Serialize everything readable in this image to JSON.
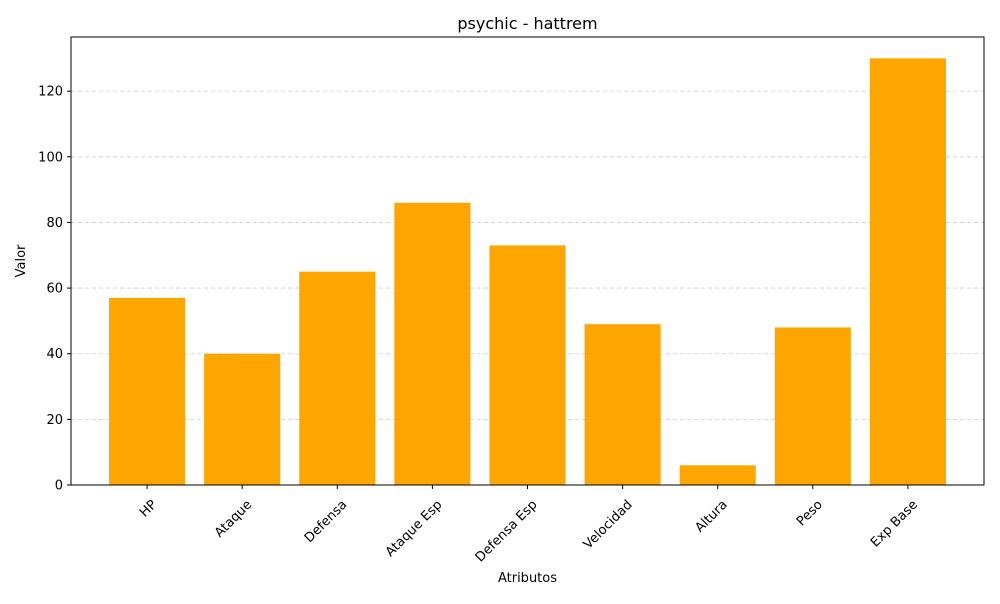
{
  "chart_data": {
    "type": "bar",
    "title": "psychic - hattrem",
    "xlabel": "Atributos",
    "ylabel": "Valor",
    "categories": [
      "HP",
      "Ataque",
      "Defensa",
      "Ataque Esp",
      "Defensa Esp",
      "Velocidad",
      "Altura",
      "Peso",
      "Exp Base"
    ],
    "values": [
      57,
      40,
      65,
      86,
      73,
      49,
      6,
      48,
      130
    ],
    "ylim": [
      0,
      136.5
    ],
    "yticks": [
      0,
      20,
      40,
      60,
      80,
      100,
      120
    ],
    "grid": "y-dashed",
    "bar_color": "#ffa500",
    "grid_color": "#cccccc",
    "x_tick_rotation_deg": 45
  }
}
